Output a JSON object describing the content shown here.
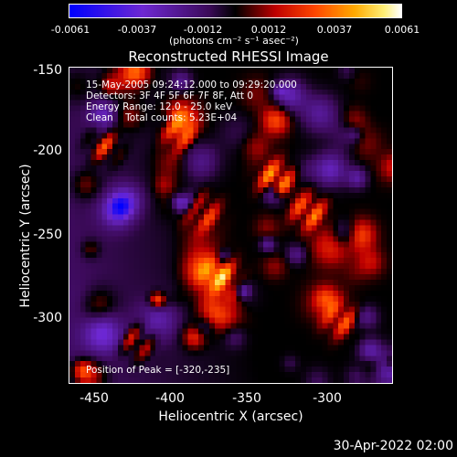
{
  "colorbar": {
    "ticks": [
      "-0.0061",
      "-0.0037",
      "-0.0012",
      "0.0012",
      "0.0037",
      "0.0061"
    ],
    "units": "(photons cm⁻² s⁻¹ asec⁻²)"
  },
  "title": "Reconstructed RHESSI Image",
  "info": {
    "line1": "15-May-2005 09:24:12.000 to 09:29:20.000",
    "line2": "Detectors: 3F 4F 5F 6F 7F 8F, Att 0",
    "line3": "Energy Range: 12.0 - 25.0 keV",
    "line4": "Clean    Total counts: 5.23E+04"
  },
  "peak": "Position of Peak = [-320,-235]",
  "axes": {
    "x_label": "Heliocentric X (arcsec)",
    "y_label": "Heliocentric Y (arcsec)",
    "x_ticks": [
      "-450",
      "-400",
      "-350",
      "-300"
    ],
    "y_ticks": [
      "-150",
      "-200",
      "-250",
      "-300"
    ]
  },
  "footer": "30-Apr-2022 02:00"
}
